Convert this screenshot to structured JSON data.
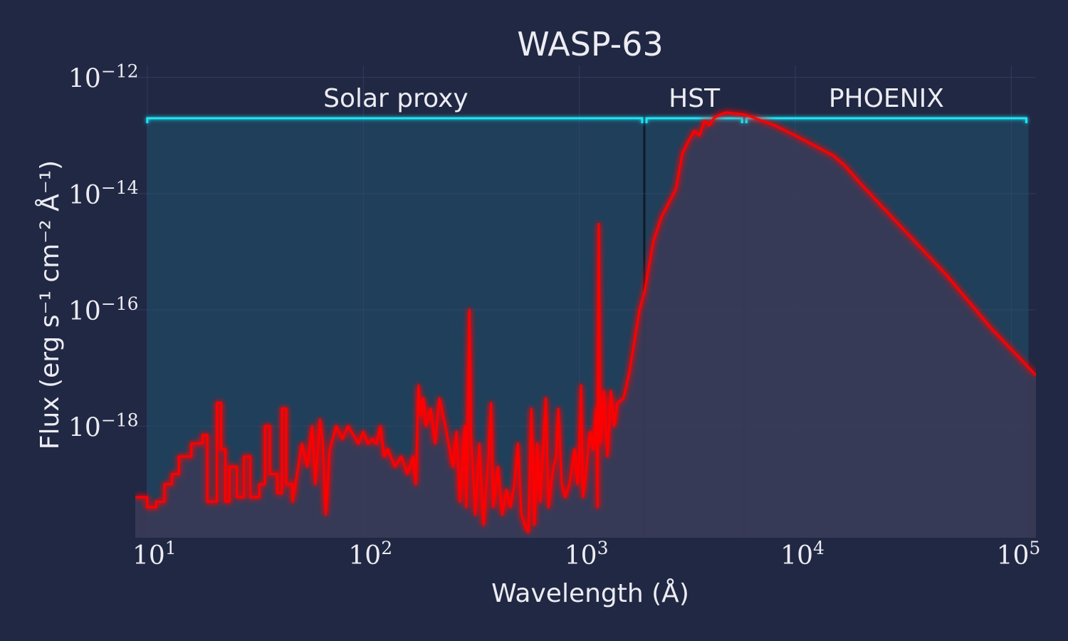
{
  "chart_data": {
    "type": "line",
    "title": "WASP-63",
    "xlabel": "Wavelength (Å)",
    "ylabel": "Flux (erg s⁻¹ cm⁻² Å⁻¹)",
    "xscale": "log",
    "yscale": "log",
    "xlim": [
      8.8,
      130000
    ],
    "ylim": [
      1.2e-20,
      1.6e-12
    ],
    "xticks": [
      {
        "value": 10,
        "base": "10",
        "exp": "1"
      },
      {
        "value": 100,
        "base": "10",
        "exp": "2"
      },
      {
        "value": 1000,
        "base": "10",
        "exp": "3"
      },
      {
        "value": 10000,
        "base": "10",
        "exp": "4"
      },
      {
        "value": 100000,
        "base": "10",
        "exp": "5"
      }
    ],
    "yticks": [
      {
        "value": 1e-12,
        "base": "10",
        "exp": "−12"
      },
      {
        "value": 1e-14,
        "base": "10",
        "exp": "−14"
      },
      {
        "value": 1e-16,
        "base": "10",
        "exp": "−16"
      },
      {
        "value": 1e-18,
        "base": "10",
        "exp": "−18"
      }
    ],
    "grid": true,
    "regions": [
      {
        "label": "Solar proxy",
        "x_start": 10,
        "x_end": 2000
      },
      {
        "label": "HST",
        "x_start": 2000,
        "x_end": 5800
      },
      {
        "label": "PHOENIX",
        "x_start": 5800,
        "x_end": 120000
      }
    ],
    "series": [
      {
        "color": "#ff0000",
        "points": [
          [
            8.8,
            6e-20
          ],
          [
            10,
            6e-20
          ],
          [
            10,
            4e-20
          ],
          [
            11,
            4e-20
          ],
          [
            11,
            5e-20
          ],
          [
            12,
            5e-20
          ],
          [
            12,
            1e-19
          ],
          [
            13,
            1e-19
          ],
          [
            13,
            1.5e-19
          ],
          [
            14,
            1.5e-19
          ],
          [
            14,
            3e-19
          ],
          [
            16,
            3e-19
          ],
          [
            16,
            5e-19
          ],
          [
            18,
            5e-19
          ],
          [
            18,
            7e-19
          ],
          [
            19,
            7e-19
          ],
          [
            19,
            5e-20
          ],
          [
            21,
            5e-20
          ],
          [
            21,
            2.5e-18
          ],
          [
            22,
            2.5e-18
          ],
          [
            22,
            4e-19
          ],
          [
            23,
            4e-19
          ],
          [
            23,
            5e-20
          ],
          [
            24,
            5e-20
          ],
          [
            24,
            2e-19
          ],
          [
            26,
            2e-19
          ],
          [
            26,
            6e-20
          ],
          [
            28,
            6e-20
          ],
          [
            28,
            3e-19
          ],
          [
            30,
            3e-19
          ],
          [
            30,
            6e-20
          ],
          [
            33,
            6e-20
          ],
          [
            33,
            1e-19
          ],
          [
            35,
            1e-19
          ],
          [
            35,
            1e-18
          ],
          [
            37,
            1e-18
          ],
          [
            37,
            1.5e-19
          ],
          [
            40,
            1.5e-19
          ],
          [
            40,
            7e-20
          ],
          [
            42,
            7e-20
          ],
          [
            42,
            2e-18
          ],
          [
            44,
            2e-18
          ],
          [
            44,
            1e-19
          ],
          [
            47,
            1e-19
          ],
          [
            47,
            5e-20
          ],
          [
            50,
            2e-19
          ],
          [
            52,
            5e-19
          ],
          [
            55,
            2e-19
          ],
          [
            58,
            1e-18
          ],
          [
            60,
            1e-19
          ],
          [
            63,
            1.3e-18
          ],
          [
            65,
            5e-19
          ],
          [
            67,
            3e-20
          ],
          [
            70,
            4e-19
          ],
          [
            75,
            1e-18
          ],
          [
            80,
            6e-19
          ],
          [
            85,
            1e-18
          ],
          [
            90,
            7e-19
          ],
          [
            95,
            5e-19
          ],
          [
            100,
            8e-19
          ],
          [
            105,
            5e-19
          ],
          [
            110,
            6e-19
          ],
          [
            115,
            5e-19
          ],
          [
            120,
            1e-18
          ],
          [
            125,
            3e-19
          ],
          [
            130,
            4e-19
          ],
          [
            140,
            2e-19
          ],
          [
            150,
            3e-19
          ],
          [
            160,
            1.5e-19
          ],
          [
            170,
            3e-19
          ],
          [
            175,
            1e-19
          ],
          [
            180,
            5e-18
          ],
          [
            185,
            1.5e-18
          ],
          [
            190,
            3e-18
          ],
          [
            195,
            1e-18
          ],
          [
            205,
            2e-18
          ],
          [
            215,
            5e-19
          ],
          [
            225,
            3e-18
          ],
          [
            240,
            1e-18
          ],
          [
            260,
            2e-19
          ],
          [
            270,
            8e-19
          ],
          [
            280,
            5e-20
          ],
          [
            295,
            1e-18
          ],
          [
            300,
            4e-20
          ],
          [
            310,
            1e-16
          ],
          [
            315,
            8e-19
          ],
          [
            330,
            3e-20
          ],
          [
            345,
            5e-19
          ],
          [
            360,
            2e-20
          ],
          [
            380,
            3e-19
          ],
          [
            390,
            2.5e-18
          ],
          [
            400,
            4e-20
          ],
          [
            420,
            2e-19
          ],
          [
            440,
            3e-20
          ],
          [
            460,
            8e-20
          ],
          [
            480,
            4e-20
          ],
          [
            500,
            1e-19
          ],
          [
            520,
            5e-19
          ],
          [
            540,
            3e-20
          ],
          [
            560,
            2e-20
          ],
          [
            580,
            1.5e-20
          ],
          [
            600,
            2e-18
          ],
          [
            620,
            2e-20
          ],
          [
            640,
            5e-19
          ],
          [
            660,
            5e-20
          ],
          [
            700,
            3e-18
          ],
          [
            720,
            4e-20
          ],
          [
            740,
            1e-19
          ],
          [
            760,
            2e-19
          ],
          [
            780,
            3e-19
          ],
          [
            800,
            2e-18
          ],
          [
            830,
            1e-19
          ],
          [
            860,
            6e-20
          ],
          [
            900,
            1e-19
          ],
          [
            950,
            4e-19
          ],
          [
            980,
            1e-19
          ],
          [
            1000,
            3e-19
          ],
          [
            1020,
            5e-18
          ],
          [
            1040,
            6e-20
          ],
          [
            1080,
            2e-19
          ],
          [
            1120,
            8e-19
          ],
          [
            1160,
            4e-19
          ],
          [
            1200,
            2e-18
          ],
          [
            1215,
            4e-20
          ],
          [
            1230,
            3e-15
          ],
          [
            1250,
            5e-19
          ],
          [
            1300,
            4e-18
          ],
          [
            1350,
            3e-19
          ],
          [
            1400,
            4e-18
          ],
          [
            1450,
            1e-18
          ],
          [
            1500,
            2.5e-18
          ],
          [
            1600,
            3e-18
          ],
          [
            1700,
            8e-18
          ],
          [
            1800,
            3e-17
          ],
          [
            1900,
            1e-16
          ],
          [
            2000,
            2e-16
          ],
          [
            2200,
            1.5e-15
          ],
          [
            2400,
            4e-15
          ],
          [
            2600,
            7e-15
          ],
          [
            2800,
            1.2e-14
          ],
          [
            3000,
            5e-14
          ],
          [
            3200,
            8e-14
          ],
          [
            3400,
            1.2e-13
          ],
          [
            3600,
            1e-13
          ],
          [
            3800,
            1.8e-13
          ],
          [
            4000,
            1.5e-13
          ],
          [
            4200,
            2e-13
          ],
          [
            4500,
            2.3e-13
          ],
          [
            4800,
            2.5e-13
          ],
          [
            5200,
            2.4e-13
          ],
          [
            5800,
            2.3e-13
          ],
          [
            7000,
            1.8e-13
          ],
          [
            8000,
            1.5e-13
          ],
          [
            10000,
            1e-13
          ],
          [
            12000,
            7e-14
          ],
          [
            15000,
            4.5e-14
          ],
          [
            17000,
            3e-14
          ],
          [
            20000,
            1.5e-14
          ],
          [
            30000,
            3e-15
          ],
          [
            50000,
            4e-16
          ],
          [
            80000,
            5e-17
          ],
          [
            130000,
            7.5e-18
          ]
        ]
      }
    ]
  }
}
